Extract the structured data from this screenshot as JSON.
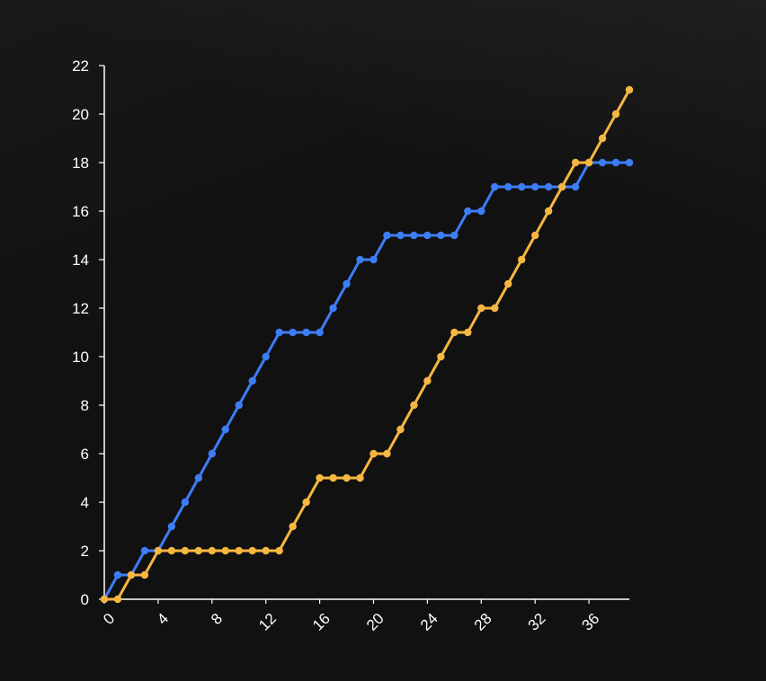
{
  "chart_data": {
    "type": "line",
    "title": "",
    "xlabel": "",
    "ylabel": "",
    "xlim": [
      0,
      39
    ],
    "ylim": [
      0,
      22
    ],
    "x_ticks": [
      "0",
      "4",
      "8",
      "12",
      "16",
      "20",
      "24",
      "28",
      "32",
      "36"
    ],
    "y_ticks": [
      "0",
      "2",
      "4",
      "6",
      "8",
      "10",
      "12",
      "14",
      "16",
      "18",
      "20",
      "22"
    ],
    "grid": false,
    "legend": false,
    "x": [
      0,
      1,
      2,
      3,
      4,
      5,
      6,
      7,
      8,
      9,
      10,
      11,
      12,
      13,
      14,
      15,
      16,
      17,
      18,
      19,
      20,
      21,
      22,
      23,
      24,
      25,
      26,
      27,
      28,
      29,
      30,
      31,
      32,
      33,
      34,
      35,
      36,
      37,
      38,
      39
    ],
    "series": [
      {
        "color": "#3d7df5",
        "values": [
          0,
          1,
          1,
          2,
          2,
          3,
          4,
          5,
          6,
          7,
          8,
          9,
          10,
          11,
          11,
          11,
          11,
          12,
          13,
          14,
          14,
          15,
          15,
          15,
          15,
          15,
          15,
          16,
          16,
          17,
          17,
          17,
          17,
          17,
          17,
          17,
          18,
          18,
          18,
          18
        ]
      },
      {
        "color": "#f5b642",
        "values": [
          0,
          0,
          1,
          1,
          2,
          2,
          2,
          2,
          2,
          2,
          2,
          2,
          2,
          2,
          3,
          4,
          5,
          5,
          5,
          5,
          6,
          6,
          7,
          8,
          9,
          10,
          11,
          11,
          12,
          12,
          13,
          14,
          15,
          16,
          17,
          18,
          18,
          19,
          20,
          21
        ]
      }
    ]
  },
  "colors": {
    "axis": "#ffffff",
    "background": "#111111"
  }
}
